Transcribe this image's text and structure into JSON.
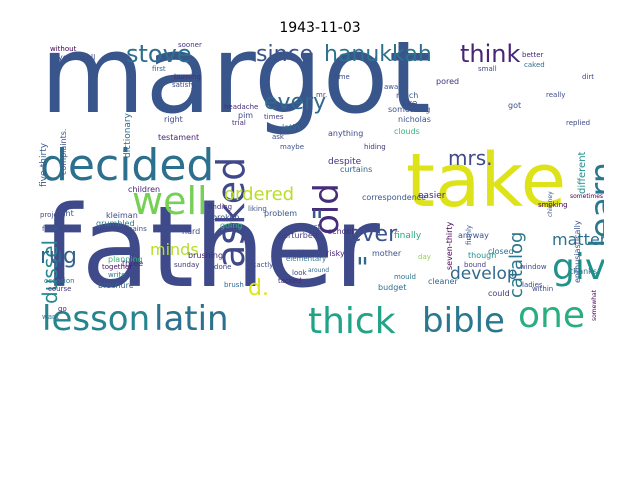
{
  "title": "1943-11-03",
  "words": [
    {
      "text": "margot",
      "color": "#39568c"
    },
    {
      "text": "father",
      "color": "#3e4a89"
    },
    {
      "text": "take",
      "color": "#dde318"
    },
    {
      "text": "decided",
      "color": "#2d708e"
    },
    {
      "text": "well",
      "color": "#75d054"
    },
    {
      "text": "asked",
      "color": "#3f4889"
    },
    {
      "text": "lesson",
      "color": "#25858e"
    },
    {
      "text": "latin",
      "color": "#2c728e"
    },
    {
      "text": "thick",
      "color": "#20a386"
    },
    {
      "text": "bible",
      "color": "#2a788e"
    },
    {
      "text": "one",
      "color": "#29af7f"
    },
    {
      "text": "give",
      "color": "#21918c"
    },
    {
      "text": "learn",
      "color": "#2a788e"
    },
    {
      "text": "stove",
      "color": "#2d708e"
    },
    {
      "text": "since",
      "color": "#3b528b"
    },
    {
      "text": "hanukkah",
      "color": "#2c728e"
    },
    {
      "text": "think",
      "color": "#482576"
    },
    {
      "text": "old",
      "color": "#472c7a"
    },
    {
      "text": "every",
      "color": "#31688e"
    },
    {
      "text": "mrs.",
      "color": "#3e4a89"
    },
    {
      "text": "catalog",
      "color": "#2a788e"
    },
    {
      "text": "dussel",
      "color": "#23888e"
    },
    {
      "text": "rug",
      "color": "#33638d"
    },
    {
      "text": "ordered",
      "color": "#b8de29"
    },
    {
      "text": "ever",
      "color": "#3b528b"
    },
    {
      "text": "minds",
      "color": "#b5de2b"
    },
    {
      "text": "d.",
      "color": "#dde318"
    },
    {
      "text": "develop",
      "color": "#31688e"
    },
    {
      "text": "matters",
      "color": "#2d708e"
    },
    {
      "text": "\"",
      "color": "#3a548c"
    },
    {
      "text": "\"",
      "color": "#30698e"
    },
    {
      "text": "five-thirty",
      "color": "#39568c"
    },
    {
      "text": "complaints.",
      "color": "#3b528b"
    },
    {
      "text": "dictionary",
      "color": "#31688e"
    },
    {
      "text": "children",
      "color": "#482576"
    },
    {
      "text": "kleiman",
      "color": "#3e4a89"
    },
    {
      "text": "grumbled",
      "color": "#2a788e"
    },
    {
      "text": "pains",
      "color": "#3b528b"
    },
    {
      "text": "planning",
      "color": "#35b779"
    },
    {
      "text": "together",
      "color": "#471365"
    },
    {
      "text": "write",
      "color": "#2a788e"
    },
    {
      "text": "brochure",
      "color": "#33638d"
    },
    {
      "text": "brushing",
      "color": "#472c7a"
    },
    {
      "text": "sunday",
      "color": "#46327e"
    },
    {
      "text": "three",
      "color": "#472c7a"
    },
    {
      "text": "exactly",
      "color": "#3e4a89"
    },
    {
      "text": "going",
      "color": "#35b779"
    },
    {
      "text": "broken",
      "color": "#3e4a89"
    },
    {
      "text": "finding",
      "color": "#46327e"
    },
    {
      "text": "liking",
      "color": "#39568c"
    },
    {
      "text": "perturbed",
      "color": "#433e85"
    },
    {
      "text": "problem",
      "color": "#39568c"
    },
    {
      "text": "said",
      "color": "#3e4a89"
    },
    {
      "text": "risky",
      "color": "#482576"
    },
    {
      "text": "despite",
      "color": "#46327e"
    },
    {
      "text": "curtains",
      "color": "#33638d"
    },
    {
      "text": "correspondence",
      "color": "#39568c"
    },
    {
      "text": "finally",
      "color": "#26ad81"
    },
    {
      "text": "mother",
      "color": "#3b528b"
    },
    {
      "text": "budget",
      "color": "#2d708e"
    },
    {
      "text": "mould",
      "color": "#2a788e"
    },
    {
      "text": "easier",
      "color": "#482576"
    },
    {
      "text": "cleaner",
      "color": "#31688e"
    },
    {
      "text": "closed",
      "color": "#2d708e"
    },
    {
      "text": "could",
      "color": "#46327e"
    },
    {
      "text": "ladies",
      "color": "#3b528b"
    },
    {
      "text": "within",
      "color": "#3e4a89"
    },
    {
      "text": "thanks.",
      "color": "#2c728e"
    },
    {
      "text": "somewhat",
      "color": "#440154"
    },
    {
      "text": "enthusiastically",
      "color": "#3b528b"
    },
    {
      "text": "seven-thirty",
      "color": "#440154"
    },
    {
      "text": "anyway",
      "color": "#3b528b"
    },
    {
      "text": "though",
      "color": "#21918c"
    },
    {
      "text": "bound",
      "color": "#433e85"
    },
    {
      "text": "much",
      "color": "#39568c"
    },
    {
      "text": "something",
      "color": "#3b528b"
    },
    {
      "text": "nicholas",
      "color": "#39568c"
    },
    {
      "text": "clouds",
      "color": "#35b779"
    },
    {
      "text": "anything",
      "color": "#3e4a89"
    },
    {
      "text": "like",
      "color": "#3e4a89"
    },
    {
      "text": "latin.",
      "color": "#2c728e"
    },
    {
      "text": "pim",
      "color": "#3e4a89"
    },
    {
      "text": "trial",
      "color": "#472c7a"
    },
    {
      "text": "headache",
      "color": "#472c7a"
    },
    {
      "text": "times",
      "color": "#433e85"
    },
    {
      "text": "maybe",
      "color": "#39568c"
    },
    {
      "text": "testament",
      "color": "#482576"
    },
    {
      "text": "right",
      "color": "#3e4a89"
    },
    {
      "text": "satisfy",
      "color": "#3e4a89"
    },
    {
      "text": "first",
      "color": "#31688e"
    },
    {
      "text": "burning",
      "color": "#472c7a"
    },
    {
      "text": "without",
      "color": "#440154"
    },
    {
      "text": "yes...well",
      "color": "#3e4a89"
    },
    {
      "text": "sooner",
      "color": "#46327e"
    },
    {
      "text": "pored",
      "color": "#46327e"
    },
    {
      "text": "small",
      "color": "#3e4a89"
    },
    {
      "text": "better",
      "color": "#482576"
    },
    {
      "text": "caked",
      "color": "#2d708e"
    },
    {
      "text": "dirt",
      "color": "#3e4a89"
    },
    {
      "text": "different",
      "color": "#21918c"
    },
    {
      "text": "replied",
      "color": "#3e4a89"
    },
    {
      "text": "really",
      "color": "#3e4a89"
    },
    {
      "text": "got",
      "color": "#3b528b"
    },
    {
      "text": "project",
      "color": "#3e4a89"
    },
    {
      "text": "light",
      "color": "#3b528b"
    },
    {
      "text": "floor",
      "color": "#33638d"
    },
    {
      "text": "occasion",
      "color": "#2a788e"
    },
    {
      "text": "course",
      "color": "#46327e"
    },
    {
      "text": "look",
      "color": "#3e4a89"
    },
    {
      "text": "tacked",
      "color": "#472c7a"
    },
    {
      "text": "around",
      "color": "#31688e"
    },
    {
      "text": "school",
      "color": "#472c7a"
    },
    {
      "text": "st.",
      "color": "#3e4a89"
    },
    {
      "text": "hard",
      "color": "#3e4a89"
    },
    {
      "text": "brush",
      "color": "#31688e"
    },
    {
      "text": "done",
      "color": "#3e4a89"
    },
    {
      "text": "elementary",
      "color": "#2d708e"
    },
    {
      "text": "hiding",
      "color": "#46327e"
    },
    {
      "text": "window",
      "color": "#3e4a89"
    },
    {
      "text": "smoking",
      "color": "#440154"
    },
    {
      "text": "sometimes",
      "color": "#440154"
    },
    {
      "text": "firmly",
      "color": "#3b528b"
    },
    {
      "text": "chimney",
      "color": "#3b528b"
    },
    {
      "text": "mr.",
      "color": "#3e4a89"
    },
    {
      "text": "time",
      "color": "#3e4a89"
    },
    {
      "text": "away",
      "color": "#3b528b"
    },
    {
      "text": "want",
      "color": "#2d708e"
    },
    {
      "text": "go",
      "color": "#472c7a"
    },
    {
      "text": "ask",
      "color": "#3e4a89"
    },
    {
      "text": "day",
      "color": "#8fd744"
    }
  ]
}
